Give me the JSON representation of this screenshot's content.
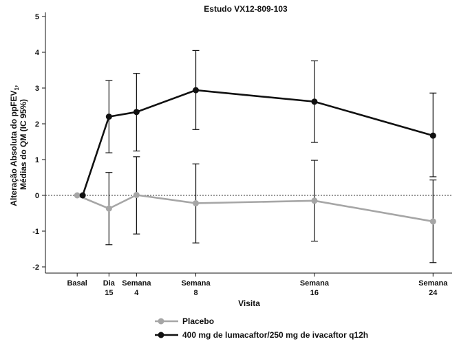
{
  "chart_data": {
    "type": "line",
    "title": "Estudo VX12-809-103",
    "xlabel": "Visita",
    "ylabel_line1": "Alteração Absoluta do ppFEV",
    "ylabel_sub": "1",
    "ylabel_suffix": ",",
    "ylabel_line2": "Médias do QM (IC 95%)",
    "ylim": [
      -2,
      5
    ],
    "yticks": [
      "5",
      "4",
      "3",
      "2",
      "1",
      "0",
      "-1",
      "-2"
    ],
    "reference_line_y": 0,
    "categories": [
      {
        "line1": "Basal",
        "line2": ""
      },
      {
        "line1": "Dia",
        "line2": "15"
      },
      {
        "line1": "Semana",
        "line2": "4"
      },
      {
        "line1": "Semana",
        "line2": "8"
      },
      {
        "line1": "Semana",
        "line2": "16"
      },
      {
        "line1": "Semana",
        "line2": "24"
      }
    ],
    "x_days": [
      0,
      15,
      28,
      56,
      112,
      168
    ],
    "series": [
      {
        "name": "Placebo",
        "color": "#a6a6a6",
        "values": [
          0,
          -0.37,
          0.01,
          -0.22,
          -0.15,
          -0.73
        ],
        "ci_low": [
          null,
          -1.38,
          -1.08,
          -1.33,
          -1.28,
          -1.88
        ],
        "ci_high": [
          null,
          0.64,
          1.08,
          0.88,
          0.98,
          0.43
        ]
      },
      {
        "name": "400 mg de lumacaftor/250 mg de ivacaftor q12h",
        "color": "#111111",
        "values": [
          0,
          2.2,
          2.33,
          2.94,
          2.62,
          1.67
        ],
        "ci_low": [
          null,
          1.19,
          1.24,
          1.84,
          1.48,
          0.52
        ],
        "ci_high": [
          null,
          3.21,
          3.41,
          4.05,
          3.76,
          2.86
        ]
      }
    ],
    "legend_position": "bottom-left"
  }
}
